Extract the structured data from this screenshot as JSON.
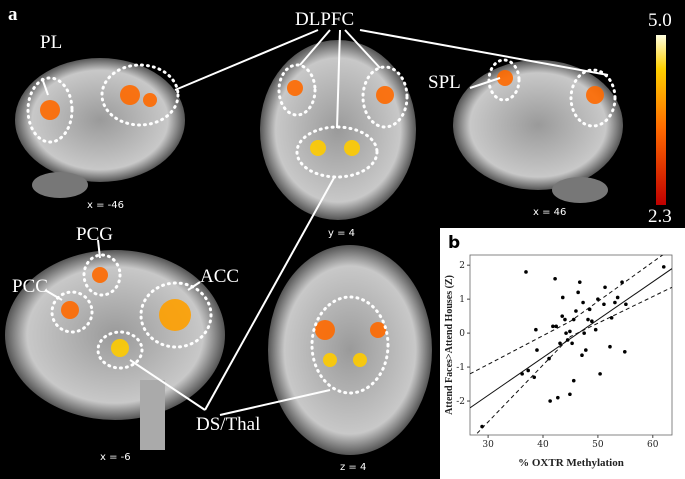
{
  "panel_a": {
    "label": "a",
    "regions": [
      "PL",
      "DLPFC",
      "SPL",
      "PCC",
      "PCG",
      "ACC",
      "DS/Thal"
    ],
    "coordinates": [
      "x = -46",
      "y = 4",
      "x = 46",
      "x = -6",
      "z = 4"
    ],
    "colorbar": {
      "max": {
        "value": 5,
        "label": "5.0"
      },
      "min": {
        "value": 2.3,
        "label": "2.3"
      }
    }
  },
  "chart_data": {
    "type": "scatter",
    "panel_label": "b",
    "x_label": "% OXTR Methylation",
    "y_label": "Attend Faces>Attend Houses (Z)",
    "x": [
      28.9,
      36.9,
      42.2,
      36.2,
      37.3,
      38.4,
      38.7,
      38.9,
      41.1,
      41.3,
      42.7,
      44.9,
      45.6,
      41.8,
      42.4,
      43.1,
      43.5,
      43.6,
      44.0,
      44.2,
      44.5,
      44.9,
      45.3,
      45.6,
      46.0,
      46.4,
      46.7,
      47.1,
      47.3,
      47.5,
      47.8,
      48.2,
      48.5,
      48.9,
      49.6,
      50.0,
      50.4,
      51.1,
      51.3,
      52.2,
      52.5,
      53.1,
      53.6,
      54.4,
      54.9,
      55.1,
      62.0
    ],
    "values": [
      -2.75,
      1.8,
      1.6,
      -1.2,
      -1.1,
      -1.3,
      0.1,
      -0.5,
      -0.75,
      -2.0,
      -1.9,
      -1.8,
      -1.4,
      0.2,
      0.2,
      -0.3,
      0.5,
      1.05,
      0.4,
      0.0,
      -0.2,
      0.05,
      -0.3,
      0.4,
      0.65,
      1.2,
      1.5,
      -0.65,
      0.9,
      0.0,
      -0.5,
      0.4,
      0.7,
      0.35,
      0.1,
      1.0,
      -1.2,
      0.85,
      1.35,
      -0.4,
      0.45,
      0.9,
      1.05,
      1.5,
      -0.55,
      0.85,
      1.95
    ],
    "color": "#000000",
    "fit": {
      "x": [
        26.7,
        63.5
      ],
      "y": [
        -2.2,
        1.9
      ]
    },
    "ci_upper": {
      "x": [
        26.7,
        45,
        63.5
      ],
      "y": [
        -1.2,
        0.35,
        2.5
      ]
    },
    "ci_lower": {
      "x": [
        28,
        45,
        63.5
      ],
      "y": [
        -2.95,
        -0.1,
        1.35
      ]
    },
    "xlim": [
      26.7,
      63.5
    ],
    "xticks": [
      30,
      40,
      50,
      60
    ],
    "ylim": [
      -3,
      2.3
    ],
    "yticks": [
      -2,
      -1,
      0,
      1,
      2
    ]
  }
}
